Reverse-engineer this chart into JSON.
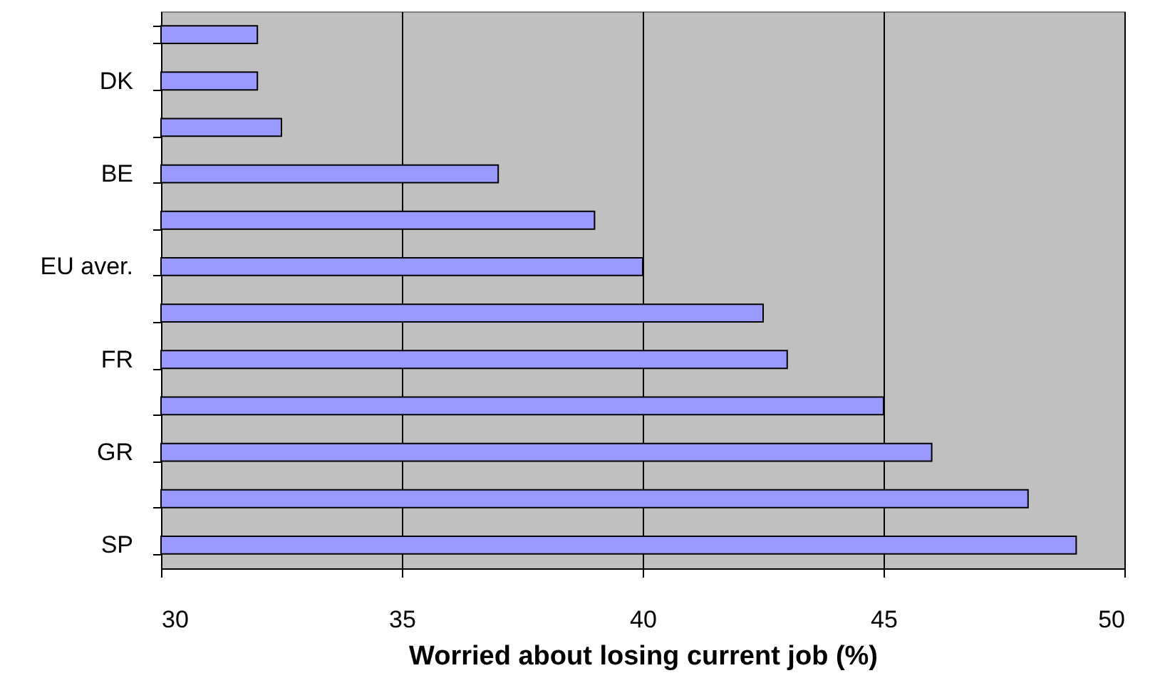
{
  "chart_data": {
    "type": "bar",
    "orientation": "horizontal",
    "xlabel": "Worried about losing current job (%)",
    "categories": [
      null,
      "DK",
      null,
      "BE",
      null,
      "EU aver.",
      null,
      "FR",
      null,
      "GR",
      null,
      "SP"
    ],
    "values": [
      32,
      32,
      32.5,
      37,
      39,
      40,
      42.5,
      43,
      45,
      46,
      48,
      49
    ],
    "color": "#9999ff",
    "xlim": [
      30,
      50
    ],
    "xticks": [
      30,
      35,
      40,
      45,
      50
    ],
    "grid": "x"
  }
}
